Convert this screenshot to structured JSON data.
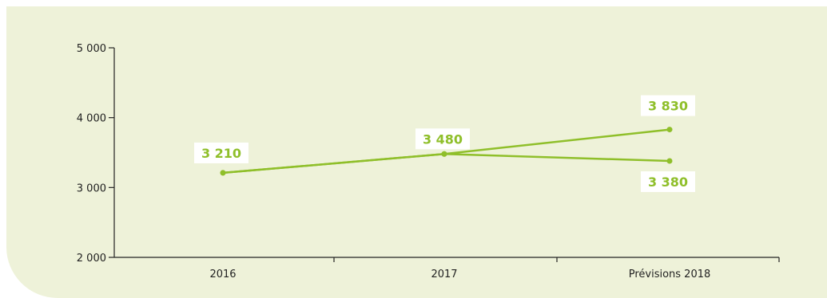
{
  "chart_data": {
    "type": "line",
    "categories": [
      "2016",
      "2017",
      "Prévisions 2018"
    ],
    "series": [
      {
        "values": [
          3210,
          3480,
          3830
        ]
      },
      {
        "values": [
          3210,
          3480,
          3380
        ]
      }
    ],
    "data_labels": [
      "3 210",
      "3 480",
      "3 830",
      "3 380"
    ],
    "y_ticks": [
      {
        "value": 2000,
        "label": "2 000"
      },
      {
        "value": 3000,
        "label": "3 000"
      },
      {
        "value": 4000,
        "label": "4 000"
      },
      {
        "value": 5000,
        "label": "5 000"
      }
    ],
    "ylim": [
      2000,
      5000
    ],
    "title": "",
    "xlabel": "",
    "ylabel": "",
    "grid": false,
    "legend": "none",
    "colors": {
      "line": "#8fbf2a",
      "panel": "#eef2d9",
      "axis": "#222222",
      "label_box": "#ffffff"
    }
  }
}
